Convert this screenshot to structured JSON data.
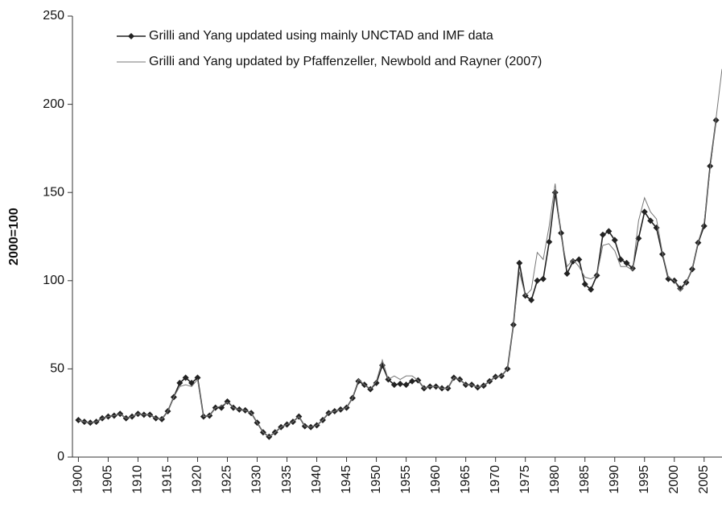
{
  "chart_data": {
    "type": "line",
    "ylabel": "2000=100",
    "x": [
      1900,
      1901,
      1902,
      1903,
      1904,
      1905,
      1906,
      1907,
      1908,
      1909,
      1910,
      1911,
      1912,
      1913,
      1914,
      1915,
      1916,
      1917,
      1918,
      1919,
      1920,
      1921,
      1922,
      1923,
      1924,
      1925,
      1926,
      1927,
      1928,
      1929,
      1930,
      1931,
      1932,
      1933,
      1934,
      1935,
      1936,
      1937,
      1938,
      1939,
      1940,
      1941,
      1942,
      1943,
      1944,
      1945,
      1946,
      1947,
      1948,
      1949,
      1950,
      1951,
      1952,
      1953,
      1954,
      1955,
      1956,
      1957,
      1958,
      1959,
      1960,
      1961,
      1962,
      1963,
      1964,
      1965,
      1966,
      1967,
      1968,
      1969,
      1970,
      1971,
      1972,
      1973,
      1974,
      1975,
      1976,
      1977,
      1978,
      1979,
      1980,
      1981,
      1982,
      1983,
      1984,
      1985,
      1986,
      1987,
      1988,
      1989,
      1990,
      1991,
      1992,
      1993,
      1994,
      1995,
      1996,
      1997,
      1998,
      1999,
      2000,
      2001,
      2002,
      2003,
      2004,
      2005,
      2006,
      2007,
      2008
    ],
    "series": [
      {
        "name": "Grilli and Yang updated using mainly UNCTAD and IMF data",
        "color": "#222222",
        "marker": "diamond",
        "values": [
          21,
          20,
          19.5,
          20,
          22,
          23,
          23.5,
          24.5,
          22,
          23,
          24.5,
          24,
          24,
          22,
          21.5,
          26,
          34,
          42,
          45,
          42,
          45,
          23,
          23.5,
          28,
          28,
          31.5,
          28,
          27,
          26.5,
          25,
          19.5,
          14,
          11.5,
          14,
          17,
          18.5,
          20,
          23,
          17.5,
          17,
          18,
          21,
          25,
          26,
          27,
          28,
          33.5,
          43,
          41,
          38.5,
          42,
          52,
          44,
          41,
          41.5,
          41,
          43,
          43.5,
          39,
          40,
          40,
          39,
          39,
          45,
          44,
          41,
          41,
          39.5,
          40.5,
          43,
          45.5,
          46,
          50,
          75,
          110,
          91.5,
          89,
          100,
          101,
          122,
          150,
          127,
          104,
          111,
          112,
          98,
          95,
          103,
          126,
          128,
          123,
          112,
          110,
          107,
          124,
          139,
          134,
          130,
          115,
          101,
          100,
          95.5,
          99,
          106.5,
          121.5,
          131,
          165,
          191,
          null
        ]
      },
      {
        "name": "Grilli and Yang updated by Pfaffenzeller, Newbold and Rayner (2007)",
        "color": "#777777",
        "marker": "none",
        "values": [
          21,
          20,
          19.5,
          20,
          22,
          23,
          23.5,
          24.5,
          22,
          23,
          24.5,
          24,
          24,
          22,
          21.5,
          26,
          34,
          40,
          41,
          40,
          44,
          23,
          23.5,
          28,
          29,
          31,
          28,
          27,
          26.5,
          25,
          19.5,
          14,
          11.5,
          14,
          17,
          18.5,
          20,
          23,
          17.5,
          17,
          18,
          21,
          25,
          26,
          27,
          28,
          33.5,
          44,
          41,
          38.5,
          43,
          55,
          44,
          46,
          44,
          46,
          46,
          43.5,
          39,
          40,
          40,
          39,
          39,
          45,
          44,
          41,
          41,
          39.5,
          40.5,
          43,
          45.5,
          46,
          50,
          75,
          105,
          91.5,
          95,
          116,
          112,
          131,
          155,
          125,
          108,
          112,
          108,
          102,
          101,
          103,
          120,
          121,
          117,
          108,
          108,
          106,
          134,
          147,
          139,
          135,
          116,
          102,
          100,
          94,
          99,
          107,
          122,
          133,
          163,
          192,
          220
        ]
      }
    ],
    "xlim": [
      1899,
      2008
    ],
    "ylim": [
      0,
      250
    ],
    "xticks": [
      1900,
      1905,
      1910,
      1915,
      1920,
      1925,
      1930,
      1935,
      1940,
      1945,
      1950,
      1955,
      1960,
      1965,
      1970,
      1975,
      1980,
      1985,
      1990,
      1995,
      2000,
      2005
    ],
    "yticks": [
      0,
      50,
      100,
      150,
      200,
      250
    ],
    "legend": "upper left",
    "grid": false
  }
}
